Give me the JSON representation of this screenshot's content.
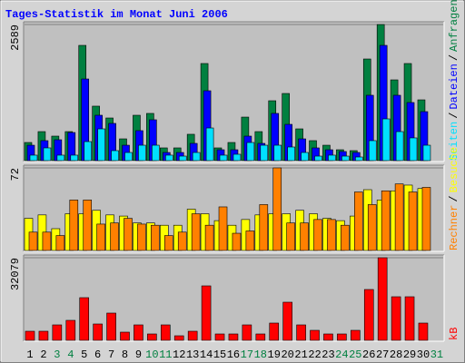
{
  "chart_data": [
    {
      "type": "bar",
      "title": "Tages-Statistik im Monat Juni 2006",
      "legend_separator": "/",
      "ylim": [
        0,
        2589
      ],
      "yticks": [
        2589
      ],
      "series": [
        {
          "name": "Anfragen",
          "color": "#008040",
          "values": [
            345,
            552,
            466,
            552,
            2192,
            1036,
            811,
            414,
            863,
            898,
            242,
            242,
            501,
            1847,
            242,
            345,
            828,
            552,
            1139,
            1277,
            604,
            380,
            293,
            207,
            190,
            1933,
            2589,
            1536,
            1847,
            1156,
            0
          ]
        },
        {
          "name": "Dateien",
          "color": "#0000ff",
          "values": [
            293,
            380,
            397,
            535,
            1553,
            863,
            708,
            293,
            570,
            777,
            155,
            155,
            328,
            1329,
            207,
            207,
            466,
            328,
            898,
            690,
            414,
            242,
            207,
            173,
            155,
            1243,
            2192,
            1243,
            1105,
            932,
            0
          ]
        },
        {
          "name": "Seiten",
          "color": "#00e0ff",
          "values": [
            104,
            242,
            104,
            104,
            362,
            604,
            190,
            155,
            293,
            293,
            104,
            86,
            155,
            621,
            104,
            121,
            345,
            293,
            293,
            259,
            155,
            86,
            104,
            86,
            69,
            380,
            794,
            552,
            432,
            293,
            0
          ]
        }
      ]
    },
    {
      "type": "bar",
      "legend_separator": "/",
      "ylim": [
        0,
        72
      ],
      "yticks": [
        72
      ],
      "series": [
        {
          "name": "Besuche",
          "color": "#ffff00",
          "values": [
            28,
            31,
            19,
            32,
            32,
            35,
            31,
            30,
            24,
            24,
            22,
            22,
            36,
            32,
            26,
            22,
            27,
            31,
            32,
            32,
            35,
            32,
            28,
            26,
            30,
            53,
            44,
            52,
            57,
            54,
            0
          ]
        },
        {
          "name": "Rechner",
          "color": "#ff8000",
          "values": [
            16,
            16,
            13,
            44,
            44,
            23,
            24,
            28,
            23,
            22,
            13,
            16,
            32,
            22,
            38,
            15,
            17,
            40,
            72,
            24,
            24,
            27,
            27,
            22,
            51,
            40,
            52,
            58,
            51,
            55,
            0
          ]
        }
      ]
    },
    {
      "type": "bar",
      "ylim": [
        0,
        32079
      ],
      "yticks": [
        32079
      ],
      "series": [
        {
          "name": "kB",
          "color": "#ff0000",
          "values": [
            3525,
            3525,
            5993,
            7755,
            16568,
            6345,
            10575,
            3173,
            5993,
            2468,
            5993,
            1763,
            3525,
            21150,
            2468,
            2468,
            5993,
            2468,
            6698,
            14805,
            5993,
            3878,
            2468,
            2468,
            3878,
            19740,
            32079,
            16920,
            16920,
            6698,
            0
          ]
        }
      ],
      "categories": [
        "1",
        "2",
        "3",
        "4",
        "5",
        "6",
        "7",
        "8",
        "9",
        "10",
        "11",
        "12",
        "13",
        "14",
        "15",
        "16",
        "17",
        "18",
        "19",
        "20",
        "21",
        "22",
        "23",
        "24",
        "25",
        "26",
        "27",
        "28",
        "29",
        "30",
        "31"
      ],
      "category_colors": [
        "#000000",
        "#000000",
        "#008040",
        "#008040",
        "#000000",
        "#000000",
        "#000000",
        "#000000",
        "#000000",
        "#008040",
        "#008040",
        "#000000",
        "#000000",
        "#000000",
        "#000000",
        "#000000",
        "#008040",
        "#008040",
        "#000000",
        "#000000",
        "#000000",
        "#000000",
        "#000000",
        "#008040",
        "#008040",
        "#000000",
        "#000000",
        "#000000",
        "#000000",
        "#000000",
        "#008040"
      ]
    }
  ]
}
